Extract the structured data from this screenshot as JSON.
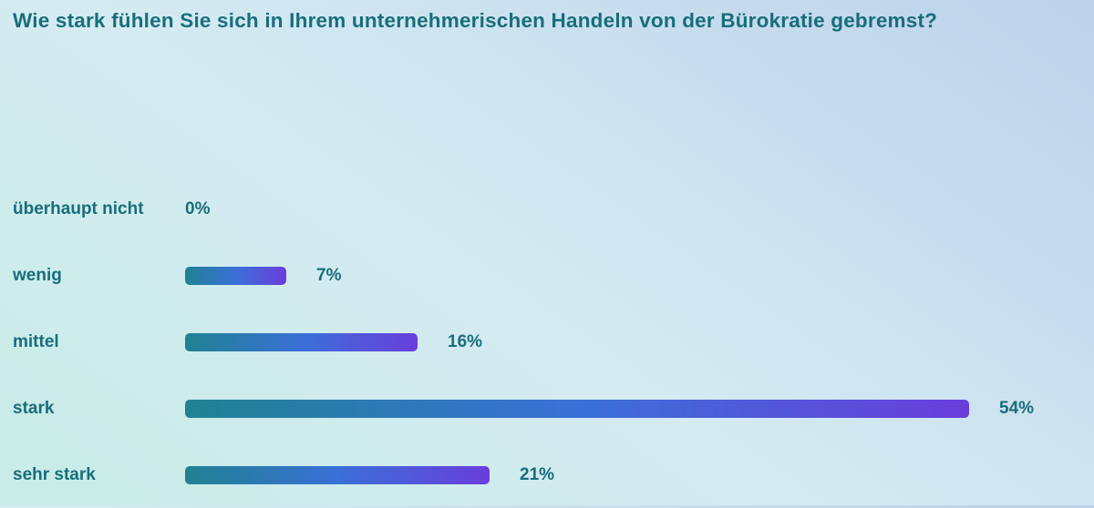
{
  "title": "Wie stark fühlen Sie sich in Ihrem unternehmerischen Handeln von der Bürokratie gebremst?",
  "colors": {
    "text": "#186e7b",
    "bar_gradient_start": "#1f8291",
    "bar_gradient_mid": "#3a70d7",
    "bar_gradient_end": "#6a3edc",
    "background_bottom_left": "#c8ece7",
    "background_top_right": "#bcd2ea"
  },
  "chart_data": {
    "type": "bar",
    "orientation": "horizontal",
    "title": "Wie stark fühlen Sie sich in Ihrem unternehmerischen Handeln von der Bürokratie gebremst?",
    "categories": [
      "überhaupt nicht",
      "wenig",
      "mittel",
      "stark",
      "sehr stark"
    ],
    "values": [
      0,
      7,
      16,
      54,
      21
    ],
    "value_labels": [
      "0%",
      "7%",
      "16%",
      "54%",
      "21%"
    ],
    "unit": "%",
    "xlabel": "",
    "ylabel": "",
    "xlim": [
      0,
      54
    ],
    "grid": false,
    "legend": false,
    "axis_visible": false,
    "bar_labels_position": "right-of-bar"
  }
}
